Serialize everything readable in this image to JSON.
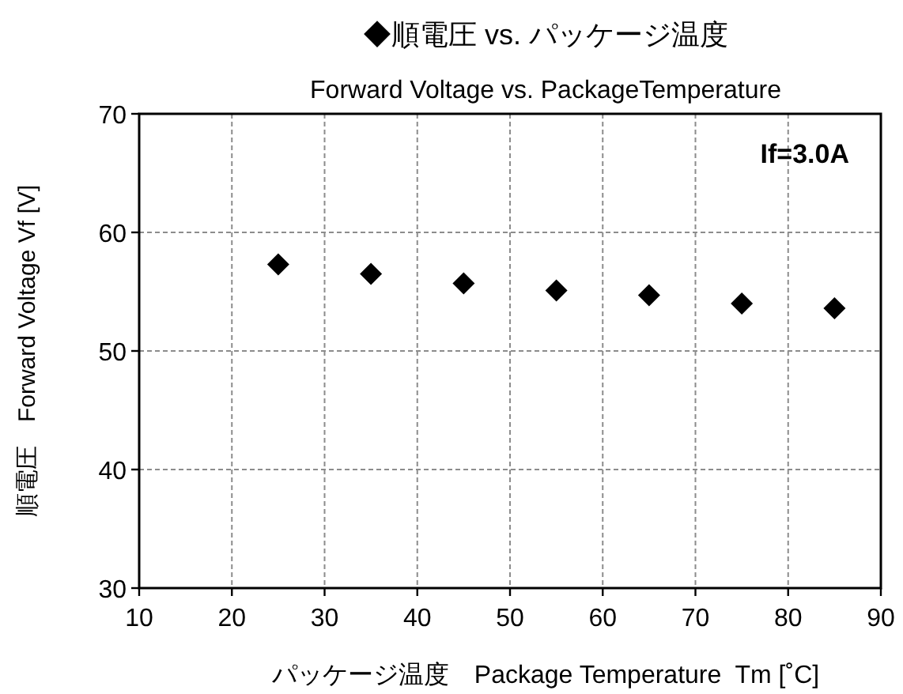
{
  "chart_data": {
    "type": "scatter",
    "title": "◆順電圧 vs. パッケージ温度",
    "subtitle": "Forward Voltage vs. PackageTemperature",
    "xlabel": "パッケージ温度　Package Temperature  Tm [˚C]",
    "ylabel": "順電圧　Forward Voltage Vf [V]",
    "annotations": [
      "If=3.0A"
    ],
    "x": [
      25,
      35,
      45,
      55,
      65,
      75,
      85
    ],
    "values": [
      57.3,
      56.5,
      55.7,
      55.1,
      54.7,
      54.0,
      53.6
    ],
    "color": "#000000",
    "marker": "diamond",
    "xlim": [
      10,
      90
    ],
    "xticks": [
      10,
      20,
      30,
      40,
      50,
      60,
      70,
      80,
      90
    ],
    "ylim": [
      30,
      70
    ],
    "yticks": [
      30,
      40,
      50,
      60,
      70
    ],
    "grid": true
  }
}
